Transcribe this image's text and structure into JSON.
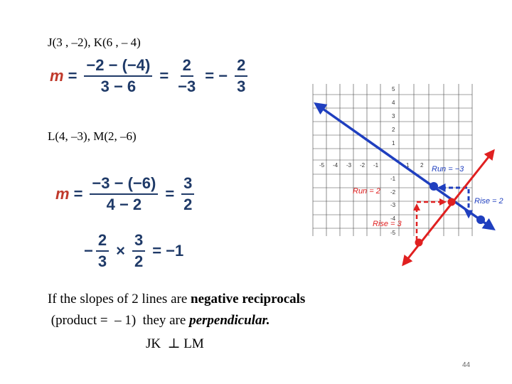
{
  "points_jk": "J(3 , –2), K(6 , – 4)",
  "points_lm": "L(4, –3), M(2, –6)",
  "eq1": {
    "m": "m",
    "eq": "=",
    "num1": "−2 − (−4)",
    "den1": "3 − 6",
    "num2": "2",
    "den2": "−3",
    "neg": "= −",
    "num3": "2",
    "den3": "3"
  },
  "eq2": {
    "m": "m",
    "eq": "=",
    "num1": "−3 − (−6)",
    "den1": "4 − 2",
    "num2": "3",
    "den2": "2"
  },
  "product": {
    "neg": "−",
    "num1": "2",
    "den1": "3",
    "times": "×",
    "num2": "3",
    "den2": "2",
    "result": "= −1"
  },
  "statement_line1_pre": "If the slopes of 2 lines are ",
  "statement_line1_bold": "negative reciprocals",
  "statement_line2_pre": " (product =  – 1)  they are ",
  "statement_line2_bold": "perpendicular.",
  "conclusion": "JK  ⊥ LM",
  "graph": {
    "y_ticks": [
      "5",
      "4",
      "3",
      "2",
      "1",
      "-1",
      "-2",
      "-3",
      "-4",
      "-5"
    ],
    "x_ticks": [
      "-5",
      "-4",
      "-3",
      "-2",
      "-1",
      "1",
      "2"
    ],
    "annotations": {
      "run_blue": "Run = −3",
      "rise_blue": "Rise =  2",
      "run_red": "Run =  2",
      "rise_red": "Rise = 3"
    },
    "colors": {
      "blue": "#1f3fbf",
      "red": "#e02020",
      "grid": "#444444"
    }
  },
  "slide_number": "44"
}
